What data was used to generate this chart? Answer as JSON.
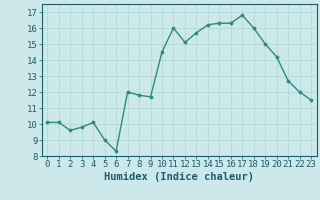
{
  "x": [
    0,
    1,
    2,
    3,
    4,
    5,
    6,
    7,
    8,
    9,
    10,
    11,
    12,
    13,
    14,
    15,
    16,
    17,
    18,
    19,
    20,
    21,
    22,
    23
  ],
  "y": [
    10.1,
    10.1,
    9.6,
    9.8,
    10.1,
    9.0,
    8.3,
    12.0,
    11.8,
    11.7,
    14.5,
    16.0,
    15.1,
    15.7,
    16.2,
    16.3,
    16.3,
    16.8,
    16.0,
    15.0,
    14.2,
    12.7,
    12.0,
    11.5
  ],
  "xlim": [
    -0.5,
    23.5
  ],
  "ylim": [
    8,
    17.5
  ],
  "yticks": [
    8,
    9,
    10,
    11,
    12,
    13,
    14,
    15,
    16,
    17
  ],
  "xticks": [
    0,
    1,
    2,
    3,
    4,
    5,
    6,
    7,
    8,
    9,
    10,
    11,
    12,
    13,
    14,
    15,
    16,
    17,
    18,
    19,
    20,
    21,
    22,
    23
  ],
  "xlabel": "Humidex (Indice chaleur)",
  "line_color": "#2e8b7a",
  "marker_color": "#2e8b7a",
  "bg_color": "#cde8eb",
  "grid_color": "#aed4d8",
  "tick_label_fontsize": 6.5,
  "xlabel_fontsize": 7.5,
  "marker_size": 2.2,
  "line_width": 1.0
}
